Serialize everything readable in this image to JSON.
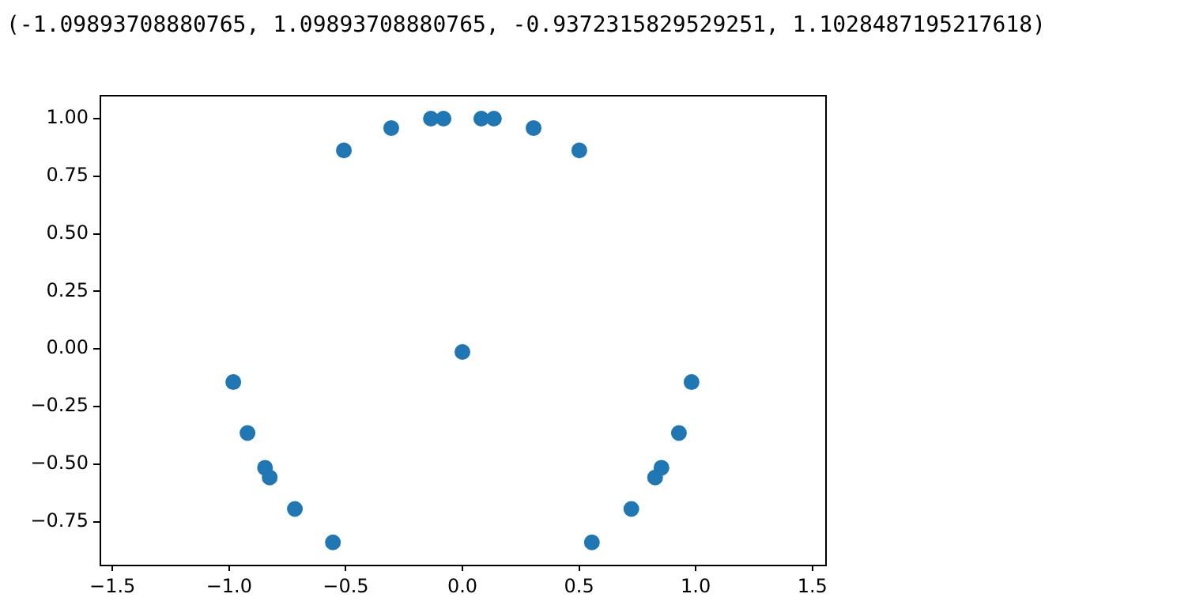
{
  "chart_data": {
    "type": "scatter",
    "annotations": [
      "(-1.09893708880765, 1.09893708880765, -0.9372315829529251, 1.1028487195217618)"
    ],
    "x": [
      -0.508,
      -0.305,
      -0.135,
      -0.081,
      0.081,
      0.135,
      0.305,
      0.501,
      0,
      -0.982,
      -0.921,
      -0.846,
      -0.826,
      -0.718,
      -0.555,
      0.555,
      0.724,
      0.826,
      0.853,
      0.928,
      0.982
    ],
    "series": [
      {
        "color": "#1f77b4",
        "values": [
          0.862,
          0.959,
          1.0,
          1.0,
          1.0,
          1.0,
          0.959,
          0.862,
          -0.013,
          -0.144,
          -0.365,
          -0.516,
          -0.558,
          -0.695,
          -0.84,
          -0.84,
          -0.695,
          -0.558,
          -0.516,
          -0.365,
          -0.144
        ]
      }
    ],
    "xlim": [
      -1.555,
      1.555
    ],
    "ylim": [
      -0.937,
      1.103
    ],
    "xticks": [
      {
        "value": -1.5,
        "label": "−1.5"
      },
      {
        "value": -1.0,
        "label": "−1.0"
      },
      {
        "value": -0.5,
        "label": "−0.5"
      },
      {
        "value": 0,
        "label": "0.0"
      },
      {
        "value": 0.5,
        "label": "0.5"
      },
      {
        "value": 1.0,
        "label": "1.0"
      },
      {
        "value": 1.5,
        "label": "1.5"
      }
    ],
    "yticks": [
      {
        "value": -0.75,
        "label": "−0.75"
      },
      {
        "value": -0.5,
        "label": "−0.50"
      },
      {
        "value": -0.25,
        "label": "−0.25"
      },
      {
        "value": 0,
        "label": "0.00"
      },
      {
        "value": 0.25,
        "label": "0.25"
      },
      {
        "value": 0.5,
        "label": "0.50"
      },
      {
        "value": 0.75,
        "label": "0.75"
      },
      {
        "value": 1.0,
        "label": "1.00"
      }
    ],
    "grid": false,
    "legend": false,
    "marker": "circle"
  }
}
